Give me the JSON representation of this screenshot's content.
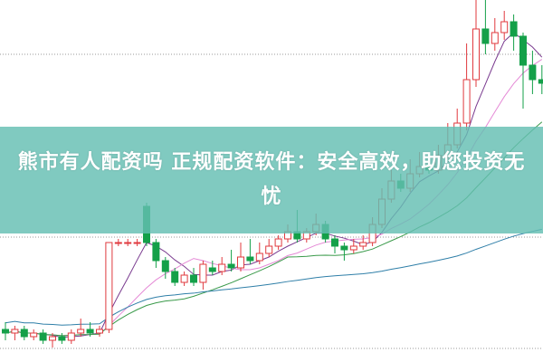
{
  "banner": {
    "title": "熊市有人配资吗 正规配资软件：安全高效，助您投资无忧"
  },
  "chart_data": {
    "type": "candlestick",
    "up_color": "#e0393e",
    "down_color": "#14a049",
    "moving_averages": [
      {
        "period": 5,
        "color": "#7a3b8f"
      },
      {
        "period": 10,
        "color": "#e58ad6"
      },
      {
        "period": 20,
        "color": "#3a9a4a"
      },
      {
        "period": 60,
        "color": "#2f7fa8"
      }
    ],
    "grid": true,
    "candles": [
      [
        9,
        8,
        11,
        6
      ],
      [
        8,
        9,
        10,
        6
      ],
      [
        9,
        7,
        10,
        6
      ],
      [
        7,
        8,
        9,
        6
      ],
      [
        8,
        6,
        9,
        5
      ],
      [
        6,
        7,
        8,
        4
      ],
      [
        7,
        6,
        8,
        5
      ],
      [
        6,
        8,
        9,
        5
      ],
      [
        8,
        9,
        12,
        7
      ],
      [
        9,
        8,
        11,
        7
      ],
      [
        8,
        9,
        10,
        7
      ],
      [
        9,
        33,
        33,
        8
      ],
      [
        33,
        33,
        34,
        32
      ],
      [
        33,
        33,
        34,
        32
      ],
      [
        33,
        33,
        34,
        32
      ],
      [
        43,
        33,
        44,
        32
      ],
      [
        33,
        28,
        34,
        26
      ],
      [
        28,
        25,
        29,
        23
      ],
      [
        25,
        22,
        26,
        21
      ],
      [
        22,
        24,
        25,
        21
      ],
      [
        24,
        22,
        26,
        21
      ],
      [
        22,
        27,
        28,
        20
      ],
      [
        26,
        25,
        28,
        24
      ],
      [
        25,
        27,
        29,
        24
      ],
      [
        27,
        26,
        31,
        25
      ],
      [
        26,
        29,
        33,
        25
      ],
      [
        29,
        28,
        34,
        27
      ],
      [
        28,
        30,
        33,
        27
      ],
      [
        30,
        32,
        34,
        29
      ],
      [
        32,
        34,
        35,
        31
      ],
      [
        34,
        36,
        38,
        33
      ],
      [
        36,
        34,
        42,
        33
      ],
      [
        34,
        36,
        37,
        33
      ],
      [
        36,
        38,
        41,
        35
      ],
      [
        38,
        34,
        39,
        33
      ],
      [
        34,
        32,
        35,
        30
      ],
      [
        32,
        31,
        33,
        28
      ],
      [
        31,
        32,
        34,
        30
      ],
      [
        32,
        33,
        35,
        31
      ],
      [
        33,
        38,
        40,
        32
      ],
      [
        38,
        45,
        48,
        37
      ],
      [
        45,
        50,
        53,
        44
      ],
      [
        50,
        48,
        52,
        47
      ],
      [
        48,
        52,
        56,
        47
      ],
      [
        52,
        54,
        58,
        51
      ],
      [
        54,
        53,
        56,
        52
      ],
      [
        53,
        57,
        60,
        52
      ],
      [
        57,
        60,
        66,
        56
      ],
      [
        60,
        66,
        70,
        59
      ],
      [
        66,
        78,
        88,
        64
      ],
      [
        78,
        92,
        100,
        76
      ],
      [
        92,
        88,
        100,
        85
      ],
      [
        88,
        91,
        95,
        86
      ],
      [
        91,
        94,
        97,
        89
      ],
      [
        94,
        90,
        96,
        86
      ],
      [
        90,
        82,
        91,
        70
      ],
      [
        82,
        78,
        86,
        74
      ],
      [
        78,
        77,
        82,
        74
      ]
    ]
  }
}
